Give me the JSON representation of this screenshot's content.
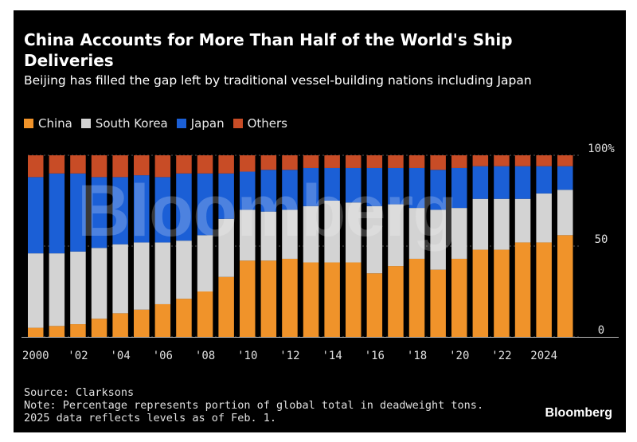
{
  "header": {
    "title": "China Accounts for More Than Half of the World's Ship Deliveries",
    "subtitle": "Beijing has filled the gap left by traditional vessel-building nations including Japan"
  },
  "legend": {
    "items": [
      {
        "label": "China",
        "color": "#f0932a"
      },
      {
        "label": "South Korea",
        "color": "#d3d3d3"
      },
      {
        "label": "Japan",
        "color": "#1b5fd6"
      },
      {
        "label": "Others",
        "color": "#c84c26"
      }
    ]
  },
  "chart_data": {
    "type": "bar",
    "stacked": true,
    "categories": [
      "2000",
      "2001",
      "2002",
      "2003",
      "2004",
      "2005",
      "2006",
      "2007",
      "2008",
      "2009",
      "2010",
      "2011",
      "2012",
      "2013",
      "2014",
      "2015",
      "2016",
      "2017",
      "2018",
      "2019",
      "2020",
      "2021",
      "2022",
      "2023",
      "2024",
      "2025"
    ],
    "x_tick_labels": [
      "2000",
      "",
      "'02",
      "",
      "'04",
      "",
      "'06",
      "",
      "'08",
      "",
      "'10",
      "",
      "'12",
      "",
      "'14",
      "",
      "'16",
      "",
      "'18",
      "",
      "'20",
      "",
      "'22",
      "",
      "2024",
      ""
    ],
    "series": [
      {
        "name": "China",
        "color": "#f0932a",
        "values": [
          5,
          6,
          7,
          10,
          13,
          15,
          18,
          21,
          25,
          33,
          42,
          42,
          43,
          41,
          41,
          41,
          35,
          39,
          43,
          37,
          43,
          48,
          48,
          52,
          52,
          56
        ]
      },
      {
        "name": "South Korea",
        "color": "#d3d3d3",
        "values": [
          41,
          40,
          40,
          39,
          38,
          37,
          34,
          32,
          31,
          32,
          28,
          27,
          27,
          31,
          34,
          33,
          37,
          34,
          28,
          33,
          28,
          28,
          28,
          24,
          27,
          25
        ]
      },
      {
        "name": "Japan",
        "color": "#1b5fd6",
        "values": [
          42,
          44,
          43,
          39,
          37,
          37,
          36,
          37,
          34,
          25,
          21,
          23,
          22,
          21,
          18,
          19,
          21,
          20,
          22,
          22,
          22,
          18,
          18,
          18,
          15,
          13
        ]
      },
      {
        "name": "Others",
        "color": "#c84c26",
        "values": [
          12,
          10,
          10,
          12,
          12,
          11,
          12,
          10,
          10,
          10,
          9,
          8,
          8,
          7,
          7,
          7,
          7,
          7,
          7,
          8,
          7,
          6,
          6,
          6,
          6,
          6
        ]
      }
    ],
    "y_ticks": [
      "0",
      "50",
      "100%"
    ],
    "y_tick_values": [
      0,
      50,
      100
    ],
    "ylim": [
      0,
      100
    ],
    "xlabel": "",
    "ylabel": ""
  },
  "footer": {
    "source": "Source: Clarksons",
    "note_line1": "Note: Percentage represents portion of global total in deadweight tons.",
    "note_line2": "2025 data reflects levels as of Feb. 1."
  },
  "watermark": "Bloomberg",
  "brand": "Bloomberg"
}
